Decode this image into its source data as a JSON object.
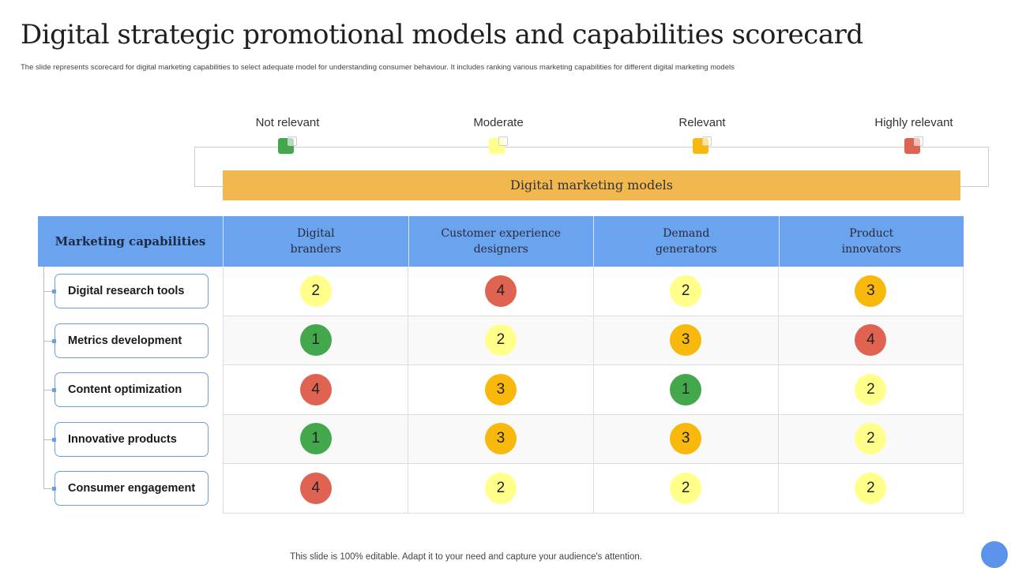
{
  "title": "Digital strategic promotional models and capabilities scorecard",
  "subtitle": "The slide represents scorecard for digital marketing capabilities to select adequate model for understanding consumer behaviour. It includes ranking various marketing capabilities for different digital marketing models",
  "legend": [
    {
      "label": "Not relevant",
      "color": "#43a84c"
    },
    {
      "label": "Moderate",
      "color": "#ffff8a"
    },
    {
      "label": "Relevant",
      "color": "#f8b80c"
    },
    {
      "label": "Highly relevant",
      "color": "#e06352"
    }
  ],
  "banner": "Digital marketing models",
  "table": {
    "header": "Marketing capabilities",
    "columns": [
      "Digital\nbranders",
      "Customer experience\ndesigners",
      "Demand\ngenerators",
      "Product\ninnovators"
    ],
    "rows": [
      {
        "label": "Digital research tools",
        "scores": [
          2,
          4,
          2,
          3
        ]
      },
      {
        "label": "Metrics development",
        "scores": [
          1,
          2,
          3,
          4
        ]
      },
      {
        "label": "Content optimization",
        "scores": [
          4,
          3,
          1,
          2
        ]
      },
      {
        "label": "Innovative products",
        "scores": [
          1,
          3,
          3,
          2
        ]
      },
      {
        "label": "Consumer engagement",
        "scores": [
          4,
          2,
          2,
          2
        ]
      }
    ]
  },
  "score_colors": {
    "1": "#43a84c",
    "2": "#ffff8a",
    "3": "#f8b80c",
    "4": "#e06352"
  },
  "footer": "This slide is 100% editable. Adapt it to your need and capture your audience's attention."
}
